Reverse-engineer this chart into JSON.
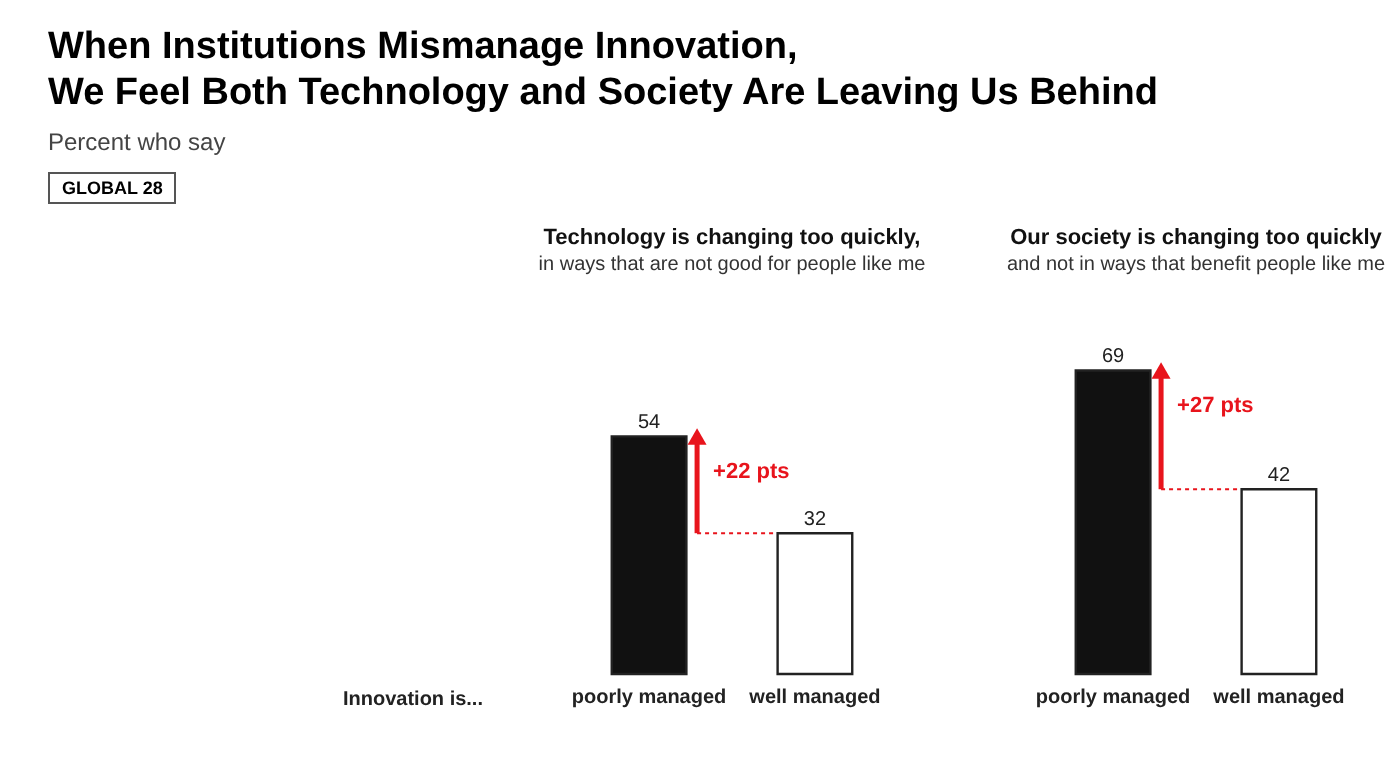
{
  "chart_data": [
    {
      "type": "other",
      "title": "When Institutions Mismanage Innovation,\nWe Feel Both Technology and Society Are Leaving Us Behind",
      "subtitle": "Percent who say",
      "annotations": [
        "GLOBAL 28"
      ]
    },
    {
      "type": "bar",
      "title": "Technology is changing too quickly,",
      "subtitle": "in ways that are not good for people like me",
      "xlabel": "Innovation is...",
      "categories": [
        "poorly managed",
        "well managed"
      ],
      "values": [
        54,
        32
      ],
      "colors": [
        "#111111",
        "#ffffff"
      ],
      "data_labels": true,
      "annotations": [
        "+22 pts"
      ]
    },
    {
      "type": "bar",
      "title": "Our society is changing too quickly",
      "subtitle": "and not in ways that benefit people like me",
      "categories": [
        "poorly managed",
        "well managed"
      ],
      "values": [
        69,
        42
      ],
      "colors": [
        "#111111",
        "#ffffff"
      ],
      "data_labels": true,
      "annotations": [
        "+27 pts"
      ]
    }
  ]
}
